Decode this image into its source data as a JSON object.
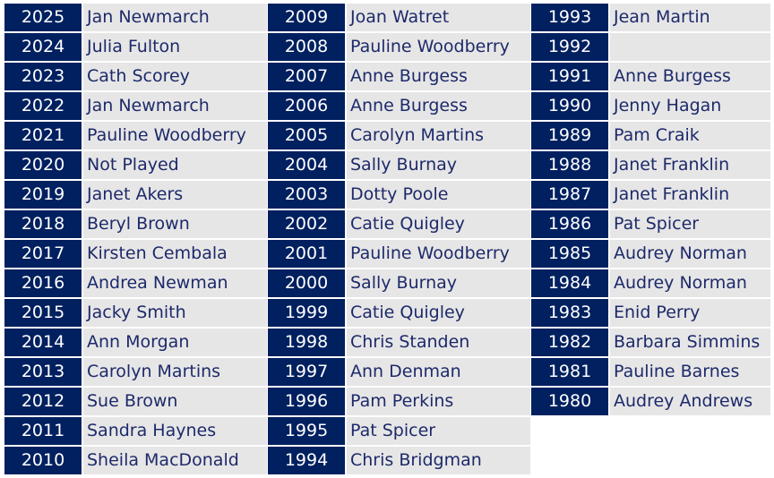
{
  "colors": {
    "year_bg": "#002060",
    "name_bg": "#e7e6e6",
    "name_text": "#1c2a6a"
  },
  "columns": [
    [
      {
        "year": "2025",
        "name": "Jan Newmarch"
      },
      {
        "year": "2024",
        "name": "Julia Fulton"
      },
      {
        "year": "2023",
        "name": "Cath Scorey"
      },
      {
        "year": "2022",
        "name": "Jan Newmarch"
      },
      {
        "year": "2021",
        "name": "Pauline Woodberry"
      },
      {
        "year": "2020",
        "name": "Not Played"
      },
      {
        "year": "2019",
        "name": "Janet Akers"
      },
      {
        "year": "2018",
        "name": "Beryl Brown"
      },
      {
        "year": "2017",
        "name": "Kirsten Cembala"
      },
      {
        "year": "2016",
        "name": "Andrea Newman"
      },
      {
        "year": "2015",
        "name": "Jacky Smith"
      },
      {
        "year": "2014",
        "name": "Ann Morgan"
      },
      {
        "year": "2013",
        "name": "Carolyn Martins"
      },
      {
        "year": "2012",
        "name": "Sue Brown"
      },
      {
        "year": "2011",
        "name": "Sandra Haynes"
      },
      {
        "year": "2010",
        "name": "Sheila MacDonald"
      }
    ],
    [
      {
        "year": "2009",
        "name": "Joan Watret"
      },
      {
        "year": "2008",
        "name": "Pauline Woodberry"
      },
      {
        "year": "2007",
        "name": "Anne Burgess"
      },
      {
        "year": "2006",
        "name": "Anne Burgess"
      },
      {
        "year": "2005",
        "name": "Carolyn Martins"
      },
      {
        "year": "2004",
        "name": "Sally Burnay"
      },
      {
        "year": "2003",
        "name": "Dotty Poole"
      },
      {
        "year": "2002",
        "name": "Catie Quigley"
      },
      {
        "year": "2001",
        "name": "Pauline Woodberry"
      },
      {
        "year": "2000",
        "name": "Sally Burnay"
      },
      {
        "year": "1999",
        "name": "Catie Quigley"
      },
      {
        "year": "1998",
        "name": "Chris Standen"
      },
      {
        "year": "1997",
        "name": "Ann Denman"
      },
      {
        "year": "1996",
        "name": "Pam Perkins"
      },
      {
        "year": "1995",
        "name": "Pat Spicer"
      },
      {
        "year": "1994",
        "name": "Chris Bridgman"
      }
    ],
    [
      {
        "year": "1993",
        "name": "Jean Martin"
      },
      {
        "year": "1992",
        "name": ""
      },
      {
        "year": "1991",
        "name": "Anne Burgess"
      },
      {
        "year": "1990",
        "name": "Jenny Hagan"
      },
      {
        "year": "1989",
        "name": "Pam Craik"
      },
      {
        "year": "1988",
        "name": "Janet Franklin"
      },
      {
        "year": "1987",
        "name": "Janet Franklin"
      },
      {
        "year": "1986",
        "name": "Pat Spicer"
      },
      {
        "year": "1985",
        "name": "Audrey Norman"
      },
      {
        "year": "1984",
        "name": "Audrey Norman"
      },
      {
        "year": "1983",
        "name": "Enid Perry"
      },
      {
        "year": "1982",
        "name": "Barbara Simmins"
      },
      {
        "year": "1981",
        "name": "Pauline Barnes"
      },
      {
        "year": "1980",
        "name": "Audrey Andrews"
      }
    ]
  ]
}
